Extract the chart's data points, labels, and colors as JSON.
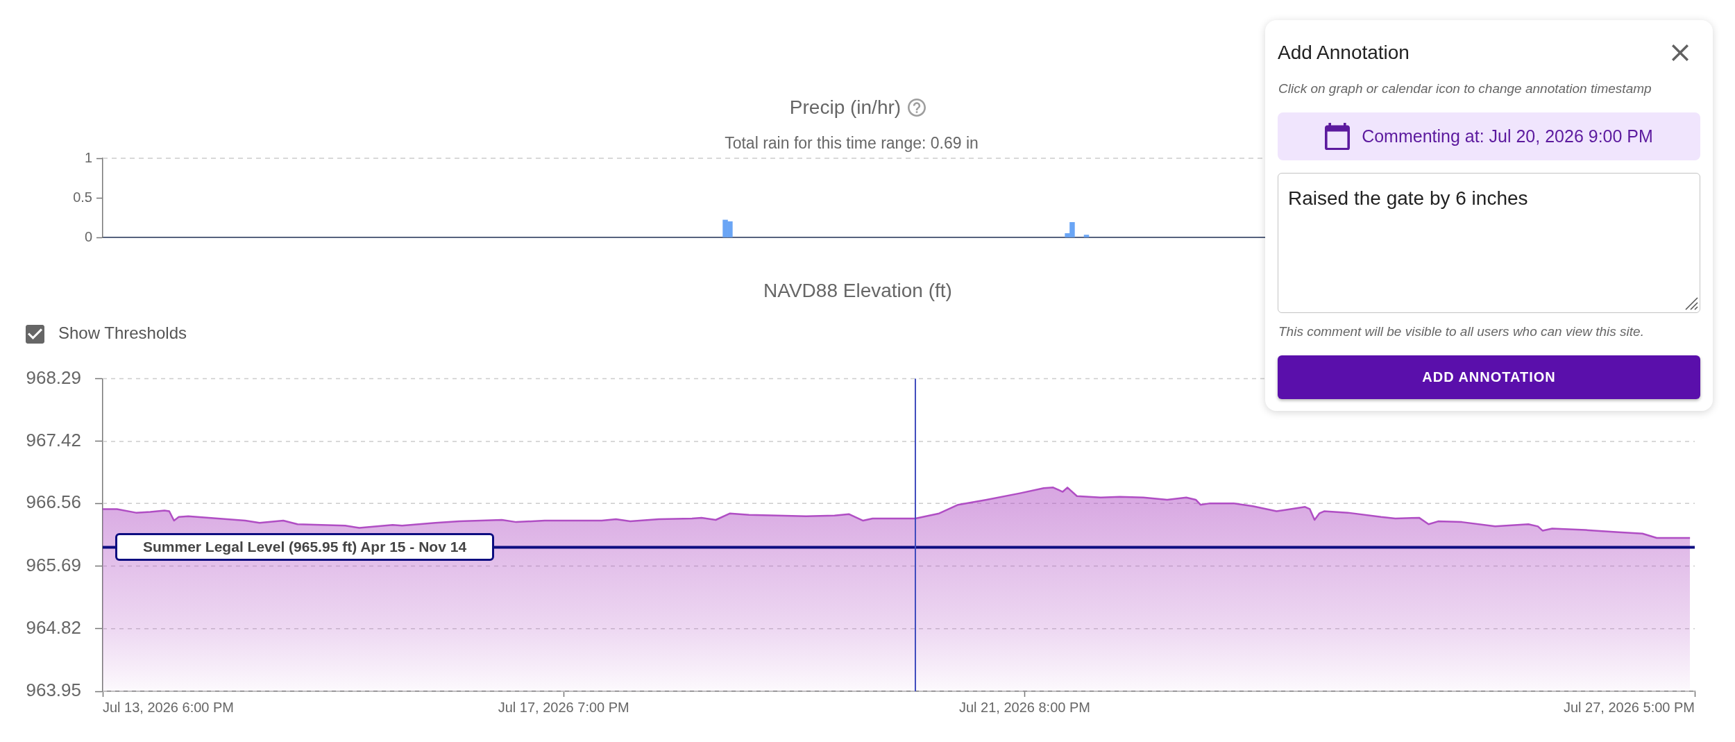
{
  "chart_data": [
    {
      "type": "bar",
      "title": "Precip (in/hr)",
      "subtitle": "Total rain for this time range: 0.69 in",
      "x": [
        "2026-07-19T05:00",
        "2026-07-19T06:00",
        "2026-07-22T05:00",
        "2026-07-22T06:00",
        "2026-07-22T09:00"
      ],
      "values": [
        0.22,
        0.2,
        0.05,
        0.19,
        0.03
      ],
      "color": "#6aa5f5",
      "xlim": [
        "2026-07-13T18:00",
        "2026-07-27T17:00"
      ],
      "ylim": [
        0,
        1
      ],
      "yticks": [
        0,
        0.5,
        1
      ],
      "tick_labels": "y",
      "ref_lines": [
        {
          "axis": "y",
          "value": 1,
          "color": "#cccccc",
          "line_style": "dashed"
        }
      ]
    },
    {
      "type": "area",
      "title": "NAVD88 Elevation (ft)",
      "x": [
        "2026-07-13T18:00",
        "2026-07-13T21:00",
        "2026-07-14T01:00",
        "2026-07-14T04:00",
        "2026-07-14T07:00",
        "2026-07-14T08:00",
        "2026-07-14T09:00",
        "2026-07-14T10:00",
        "2026-07-14T12:00",
        "2026-07-15T00:00",
        "2026-07-15T03:00",
        "2026-07-15T08:00",
        "2026-07-15T11:00",
        "2026-07-15T21:00",
        "2026-07-16T00:00",
        "2026-07-16T07:00",
        "2026-07-16T09:00",
        "2026-07-16T16:00",
        "2026-07-16T21:00",
        "2026-07-17T06:00",
        "2026-07-17T09:00",
        "2026-07-17T15:00",
        "2026-07-18T03:00",
        "2026-07-18T06:00",
        "2026-07-18T09:00",
        "2026-07-18T15:00",
        "2026-07-18T22:00",
        "2026-07-19T00:00",
        "2026-07-19T03:00",
        "2026-07-19T06:00",
        "2026-07-19T10:00",
        "2026-07-19T22:00",
        "2026-07-20T04:00",
        "2026-07-20T07:00",
        "2026-07-20T10:00",
        "2026-07-20T12:00",
        "2026-07-20T18:00",
        "2026-07-20T21:00",
        "2026-07-21T02:00",
        "2026-07-21T06:00",
        "2026-07-21T12:00",
        "2026-07-21T19:00",
        "2026-07-22T00:00",
        "2026-07-22T02:00",
        "2026-07-22T04:00",
        "2026-07-22T05:00",
        "2026-07-22T07:00",
        "2026-07-22T12:00",
        "2026-07-22T16:00",
        "2026-07-22T21:00",
        "2026-07-23T02:00",
        "2026-07-23T06:00",
        "2026-07-23T08:00",
        "2026-07-23T09:00",
        "2026-07-23T11:00",
        "2026-07-23T16:00",
        "2026-07-23T20:00",
        "2026-07-24T01:00",
        "2026-07-24T03:00",
        "2026-07-24T07:00",
        "2026-07-24T08:00",
        "2026-07-24T09:00",
        "2026-07-24T10:00",
        "2026-07-24T11:00",
        "2026-07-24T16:00",
        "2026-07-24T23:00",
        "2026-07-25T02:00",
        "2026-07-25T07:00",
        "2026-07-25T09:00",
        "2026-07-25T11:00",
        "2026-07-25T16:00",
        "2026-07-25T23:00",
        "2026-07-26T06:00",
        "2026-07-26T08:00",
        "2026-07-26T09:00",
        "2026-07-26T11:00",
        "2026-07-26T18:00",
        "2026-07-27T01:00",
        "2026-07-27T06:00",
        "2026-07-27T09:00",
        "2026-07-27T16:00"
      ],
      "values": [
        966.48,
        966.48,
        966.43,
        966.44,
        966.46,
        966.45,
        966.32,
        966.37,
        966.38,
        966.32,
        966.29,
        966.32,
        966.27,
        966.25,
        966.22,
        966.26,
        966.25,
        966.29,
        966.31,
        966.33,
        966.3,
        966.32,
        966.32,
        966.34,
        966.31,
        966.34,
        966.35,
        966.36,
        966.33,
        966.42,
        966.4,
        966.38,
        966.39,
        966.41,
        966.32,
        966.35,
        966.35,
        966.35,
        966.42,
        966.54,
        966.61,
        966.7,
        966.77,
        966.78,
        966.72,
        966.78,
        966.66,
        966.64,
        966.65,
        966.64,
        966.61,
        966.64,
        966.61,
        966.54,
        966.56,
        966.56,
        966.52,
        966.45,
        966.47,
        966.51,
        966.48,
        966.33,
        966.42,
        966.45,
        966.43,
        966.37,
        966.35,
        966.36,
        966.27,
        966.31,
        966.3,
        966.24,
        966.27,
        966.24,
        966.18,
        966.21,
        966.19,
        966.16,
        966.14,
        966.08,
        966.08
      ],
      "color": "#b04ec4",
      "xlim": [
        "2026-07-13T18:00",
        "2026-07-27T17:00"
      ],
      "xticks": [
        {
          "value": "2026-07-13T18:00",
          "label": "Jul 13, 2026 6:00 PM"
        },
        {
          "value": "2026-07-17T19:00",
          "label": "Jul 17, 2026 7:00 PM"
        },
        {
          "value": "2026-07-21T20:00",
          "label": "Jul 21, 2026 8:00 PM"
        },
        {
          "value": "2026-07-27T17:00",
          "label": "Jul 27, 2026 5:00 PM"
        }
      ],
      "ylim": [
        963.95,
        968.29
      ],
      "yticks": [
        963.95,
        964.82,
        965.69,
        966.56,
        967.42,
        968.29
      ],
      "grid": "y",
      "ref_lines": [
        {
          "axis": "y",
          "value": 965.95,
          "label": "Summer Legal Level (965.95 ft) Apr 15 - Nov 14",
          "color": "#0d0d80"
        },
        {
          "axis": "x",
          "value": "2026-07-20T21:00",
          "color": "#3f4bbd"
        }
      ],
      "annotations": [
        "Show Thresholds",
        "Add Annotation",
        "Click on graph or calendar icon to change annotation timestamp",
        "Commenting at: Jul 20, 2026 9:00 PM",
        "Raised the gate by 6 inches",
        "This comment will be visible to all users who can view this site.",
        "ADD ANNOTATION"
      ]
    }
  ]
}
